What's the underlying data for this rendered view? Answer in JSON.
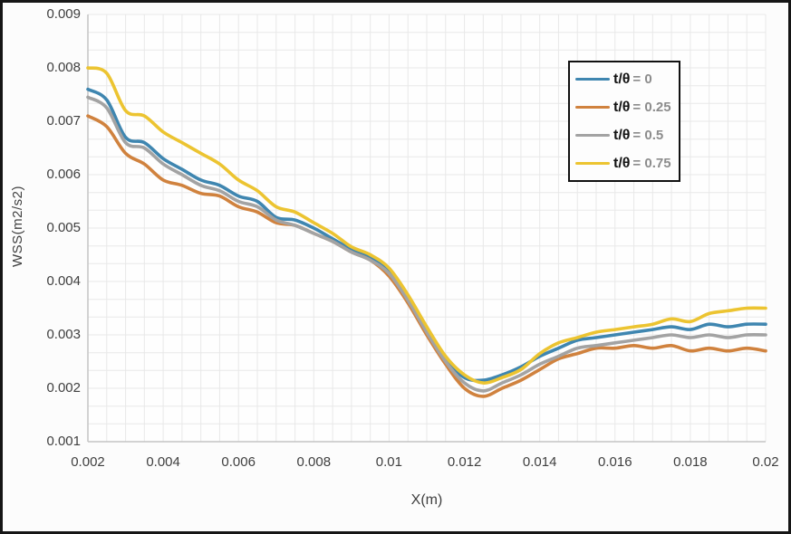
{
  "figure": {
    "background": "#FCFCFC",
    "border_color": "#161616",
    "grid_color": "#E8E8E8",
    "axis_line_color": "#C4C4C4",
    "text_color": "#3F3F3F"
  },
  "chart_data": {
    "type": "line",
    "title": "",
    "xlabel": "X(m)",
    "ylabel": "WSS(m2/s2)",
    "xlim": [
      0.002,
      0.02
    ],
    "ylim": [
      0.001,
      0.009
    ],
    "x_tick_labels": [
      "0.002",
      "0.004",
      "0.006",
      "0.008",
      "0.01",
      "0.012",
      "0.014",
      "0.016",
      "0.018",
      "0.02"
    ],
    "x_tick_values": [
      0.002,
      0.004,
      0.006,
      0.008,
      0.01,
      0.012,
      0.014,
      0.016,
      0.018,
      0.02
    ],
    "y_tick_labels": [
      "0.001",
      "0.002",
      "0.003",
      "0.004",
      "0.005",
      "0.006",
      "0.007",
      "0.008",
      "0.009"
    ],
    "y_tick_values": [
      0.001,
      0.002,
      0.003,
      0.004,
      0.005,
      0.006,
      0.007,
      0.008,
      0.009
    ],
    "grid": "minor gridlines on (x minor 0.0005, y minor 0.000333), light gray",
    "legend_position": "top-right inside plot, boxed",
    "x": [
      0.002,
      0.0025,
      0.003,
      0.0035,
      0.004,
      0.0045,
      0.005,
      0.0055,
      0.006,
      0.0065,
      0.007,
      0.0075,
      0.008,
      0.0085,
      0.009,
      0.0095,
      0.01,
      0.0105,
      0.011,
      0.0115,
      0.012,
      0.0125,
      0.013,
      0.0135,
      0.014,
      0.0145,
      0.015,
      0.0155,
      0.016,
      0.0165,
      0.017,
      0.0175,
      0.018,
      0.0185,
      0.019,
      0.0195,
      0.02
    ],
    "series": [
      {
        "name": "t/θ = 0",
        "legend_symbol": "t/θ",
        "legend_value": "= 0",
        "color": "#3F86B0",
        "values": [
          0.0076,
          0.0074,
          0.0067,
          0.0066,
          0.0063,
          0.0061,
          0.0059,
          0.0058,
          0.0056,
          0.0055,
          0.0052,
          0.00515,
          0.005,
          0.0048,
          0.0046,
          0.00445,
          0.0042,
          0.0037,
          0.0031,
          0.00255,
          0.0022,
          0.00215,
          0.00225,
          0.0024,
          0.0026,
          0.00275,
          0.0029,
          0.00295,
          0.003,
          0.00305,
          0.0031,
          0.00315,
          0.0031,
          0.0032,
          0.00315,
          0.0032,
          0.0032
        ]
      },
      {
        "name": "t/θ = 0.25",
        "legend_symbol": "t/θ",
        "legend_value": "= 0.25",
        "color": "#D0823E",
        "values": [
          0.0071,
          0.0069,
          0.0064,
          0.0062,
          0.0059,
          0.0058,
          0.00565,
          0.0056,
          0.0054,
          0.0053,
          0.0051,
          0.00505,
          0.0049,
          0.00475,
          0.00455,
          0.0044,
          0.0041,
          0.0036,
          0.003,
          0.00245,
          0.002,
          0.00185,
          0.002,
          0.00215,
          0.00235,
          0.00255,
          0.00265,
          0.00275,
          0.00275,
          0.0028,
          0.00275,
          0.0028,
          0.0027,
          0.00275,
          0.0027,
          0.00275,
          0.0027
        ]
      },
      {
        "name": "t/θ = 0.5",
        "legend_symbol": "t/θ",
        "legend_value": "= 0.5",
        "color": "#A3A3A3",
        "values": [
          0.00745,
          0.00725,
          0.0066,
          0.0065,
          0.0062,
          0.006,
          0.0058,
          0.0057,
          0.0055,
          0.0054,
          0.00515,
          0.00505,
          0.0049,
          0.00475,
          0.00455,
          0.0044,
          0.00415,
          0.00365,
          0.00305,
          0.0025,
          0.0021,
          0.00195,
          0.0021,
          0.00225,
          0.00245,
          0.0026,
          0.00275,
          0.0028,
          0.00285,
          0.0029,
          0.00295,
          0.003,
          0.00295,
          0.003,
          0.00295,
          0.003,
          0.003
        ]
      },
      {
        "name": "t/θ = 0.75",
        "legend_symbol": "t/θ",
        "legend_value": "= 0.75",
        "color": "#ECC431",
        "values": [
          0.008,
          0.0079,
          0.0072,
          0.0071,
          0.0068,
          0.0066,
          0.0064,
          0.0062,
          0.0059,
          0.0057,
          0.0054,
          0.0053,
          0.0051,
          0.0049,
          0.00465,
          0.0045,
          0.00425,
          0.00375,
          0.00315,
          0.0026,
          0.00225,
          0.0021,
          0.0022,
          0.00235,
          0.00265,
          0.00285,
          0.00295,
          0.00305,
          0.0031,
          0.00315,
          0.0032,
          0.0033,
          0.00325,
          0.0034,
          0.00345,
          0.0035,
          0.0035
        ]
      }
    ]
  }
}
